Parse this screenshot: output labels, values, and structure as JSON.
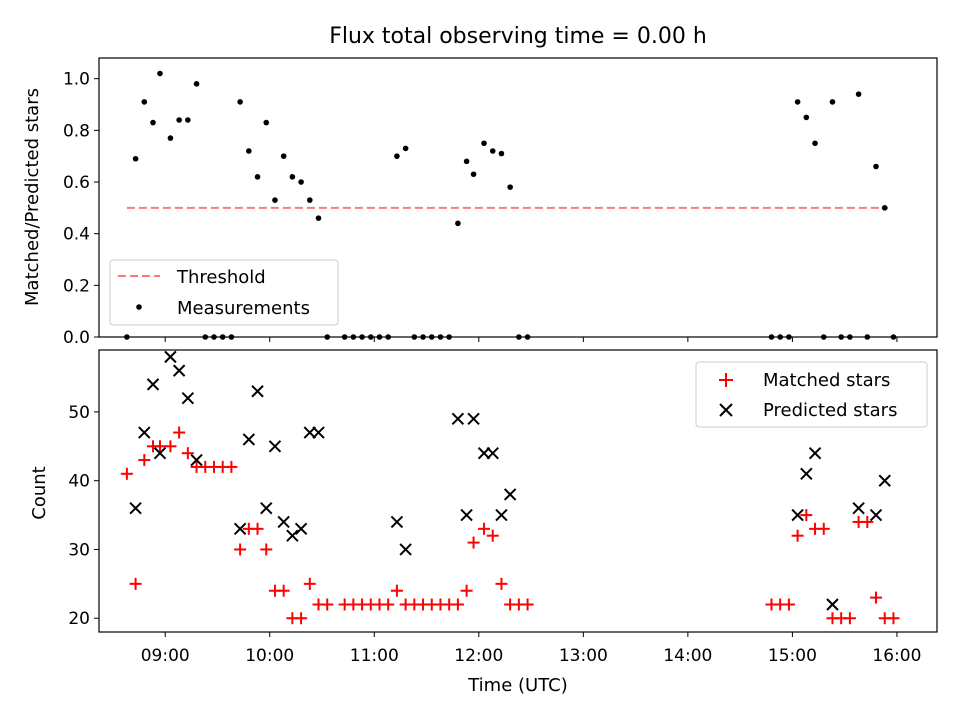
{
  "chart_data": [
    {
      "type": "scatter",
      "title": "Flux total observing time = 0.00 h",
      "xlabel": "",
      "ylabel": "Matched/Predicted stars",
      "xlim": [
        "08:22",
        "16:23"
      ],
      "ylim": [
        0,
        1.08
      ],
      "yticks": [
        0.0,
        0.2,
        0.4,
        0.6,
        0.8,
        1.0
      ],
      "ytick_labels": [
        "0.0",
        "0.2",
        "0.4",
        "0.6",
        "0.8",
        "1.0"
      ],
      "grid": false,
      "legend": "lower-left",
      "threshold": {
        "name": "Threshold",
        "value": 0.5,
        "x_range": [
          "08:38",
          "15:55"
        ],
        "color": "#ff7777",
        "style": "dashed"
      },
      "series": [
        {
          "name": "Measurements",
          "marker": "dot",
          "color": "#000000",
          "points": [
            [
              "08:38",
              0.0
            ],
            [
              "08:43",
              0.69
            ],
            [
              "08:48",
              0.91
            ],
            [
              "08:53",
              0.83
            ],
            [
              "08:57",
              1.02
            ],
            [
              "09:03",
              0.77
            ],
            [
              "09:08",
              0.84
            ],
            [
              "09:13",
              0.84
            ],
            [
              "09:18",
              0.98
            ],
            [
              "09:23",
              0.0
            ],
            [
              "09:28",
              0.0
            ],
            [
              "09:33",
              0.0
            ],
            [
              "09:38",
              0.0
            ],
            [
              "09:43",
              0.91
            ],
            [
              "09:48",
              0.72
            ],
            [
              "09:53",
              0.62
            ],
            [
              "09:58",
              0.83
            ],
            [
              "10:03",
              0.53
            ],
            [
              "10:08",
              0.7
            ],
            [
              "10:13",
              0.62
            ],
            [
              "10:18",
              0.6
            ],
            [
              "10:23",
              0.53
            ],
            [
              "10:28",
              0.46
            ],
            [
              "10:33",
              0.0
            ],
            [
              "10:43",
              0.0
            ],
            [
              "10:48",
              0.0
            ],
            [
              "10:53",
              0.0
            ],
            [
              "10:58",
              0.0
            ],
            [
              "11:03",
              0.0
            ],
            [
              "11:08",
              0.0
            ],
            [
              "11:13",
              0.7
            ],
            [
              "11:18",
              0.73
            ],
            [
              "11:23",
              0.0
            ],
            [
              "11:28",
              0.0
            ],
            [
              "11:33",
              0.0
            ],
            [
              "11:38",
              0.0
            ],
            [
              "11:43",
              0.0
            ],
            [
              "11:48",
              0.44
            ],
            [
              "11:53",
              0.68
            ],
            [
              "11:57",
              0.63
            ],
            [
              "12:03",
              0.75
            ],
            [
              "12:08",
              0.72
            ],
            [
              "12:13",
              0.71
            ],
            [
              "12:18",
              0.58
            ],
            [
              "12:23",
              0.0
            ],
            [
              "12:28",
              0.0
            ],
            [
              "14:48",
              0.0
            ],
            [
              "14:53",
              0.0
            ],
            [
              "14:58",
              0.0
            ],
            [
              "15:03",
              0.91
            ],
            [
              "15:08",
              0.85
            ],
            [
              "15:13",
              0.75
            ],
            [
              "15:18",
              0.0
            ],
            [
              "15:23",
              0.91
            ],
            [
              "15:28",
              0.0
            ],
            [
              "15:33",
              0.0
            ],
            [
              "15:38",
              0.94
            ],
            [
              "15:43",
              0.0
            ],
            [
              "15:48",
              0.66
            ],
            [
              "15:53",
              0.5
            ],
            [
              "15:58",
              0.0
            ]
          ]
        }
      ]
    },
    {
      "type": "scatter",
      "title": "",
      "xlabel": "Time (UTC)",
      "ylabel": "Count",
      "xlim": [
        "08:22",
        "16:23"
      ],
      "ylim": [
        18,
        59
      ],
      "xticks": [
        "09:00",
        "10:00",
        "11:00",
        "12:00",
        "13:00",
        "14:00",
        "15:00",
        "16:00"
      ],
      "yticks": [
        20,
        30,
        40,
        50
      ],
      "grid": false,
      "legend": "upper-right",
      "series": [
        {
          "name": "Matched stars",
          "marker": "plus",
          "color": "#ff0000",
          "points": [
            [
              "08:38",
              41
            ],
            [
              "08:43",
              25
            ],
            [
              "08:48",
              43
            ],
            [
              "08:53",
              45
            ],
            [
              "08:57",
              45
            ],
            [
              "09:03",
              45
            ],
            [
              "09:08",
              47
            ],
            [
              "09:13",
              44
            ],
            [
              "09:18",
              42
            ],
            [
              "09:23",
              42
            ],
            [
              "09:28",
              42
            ],
            [
              "09:33",
              42
            ],
            [
              "09:38",
              42
            ],
            [
              "09:43",
              30
            ],
            [
              "09:48",
              33
            ],
            [
              "09:53",
              33
            ],
            [
              "09:58",
              30
            ],
            [
              "10:03",
              24
            ],
            [
              "10:08",
              24
            ],
            [
              "10:13",
              20
            ],
            [
              "10:18",
              20
            ],
            [
              "10:23",
              25
            ],
            [
              "10:28",
              22
            ],
            [
              "10:33",
              22
            ],
            [
              "10:43",
              22
            ],
            [
              "10:48",
              22
            ],
            [
              "10:53",
              22
            ],
            [
              "10:58",
              22
            ],
            [
              "11:03",
              22
            ],
            [
              "11:08",
              22
            ],
            [
              "11:13",
              24
            ],
            [
              "11:18",
              22
            ],
            [
              "11:23",
              22
            ],
            [
              "11:28",
              22
            ],
            [
              "11:33",
              22
            ],
            [
              "11:38",
              22
            ],
            [
              "11:43",
              22
            ],
            [
              "11:48",
              22
            ],
            [
              "11:53",
              24
            ],
            [
              "11:57",
              31
            ],
            [
              "12:03",
              33
            ],
            [
              "12:08",
              32
            ],
            [
              "12:13",
              25
            ],
            [
              "12:18",
              22
            ],
            [
              "12:23",
              22
            ],
            [
              "12:28",
              22
            ],
            [
              "14:48",
              22
            ],
            [
              "14:53",
              22
            ],
            [
              "14:58",
              22
            ],
            [
              "15:03",
              32
            ],
            [
              "15:08",
              35
            ],
            [
              "15:13",
              33
            ],
            [
              "15:18",
              33
            ],
            [
              "15:23",
              20
            ],
            [
              "15:28",
              20
            ],
            [
              "15:33",
              20
            ],
            [
              "15:38",
              34
            ],
            [
              "15:43",
              34
            ],
            [
              "15:48",
              23
            ],
            [
              "15:53",
              20
            ],
            [
              "15:58",
              20
            ]
          ]
        },
        {
          "name": "Predicted stars",
          "marker": "x",
          "color": "#000000",
          "points": [
            [
              "08:43",
              36
            ],
            [
              "08:48",
              47
            ],
            [
              "08:53",
              54
            ],
            [
              "08:57",
              44
            ],
            [
              "09:03",
              58
            ],
            [
              "09:08",
              56
            ],
            [
              "09:13",
              52
            ],
            [
              "09:18",
              43
            ],
            [
              "09:43",
              33
            ],
            [
              "09:48",
              46
            ],
            [
              "09:53",
              53
            ],
            [
              "09:58",
              36
            ],
            [
              "10:03",
              45
            ],
            [
              "10:08",
              34
            ],
            [
              "10:13",
              32
            ],
            [
              "10:18",
              33
            ],
            [
              "10:23",
              47
            ],
            [
              "10:28",
              47
            ],
            [
              "11:13",
              34
            ],
            [
              "11:18",
              30
            ],
            [
              "11:48",
              49
            ],
            [
              "11:53",
              35
            ],
            [
              "11:57",
              49
            ],
            [
              "12:03",
              44
            ],
            [
              "12:08",
              44
            ],
            [
              "12:13",
              35
            ],
            [
              "12:18",
              38
            ],
            [
              "15:03",
              35
            ],
            [
              "15:08",
              41
            ],
            [
              "15:13",
              44
            ],
            [
              "15:23",
              22
            ],
            [
              "15:38",
              36
            ],
            [
              "15:48",
              35
            ],
            [
              "15:53",
              40
            ]
          ]
        }
      ]
    }
  ]
}
